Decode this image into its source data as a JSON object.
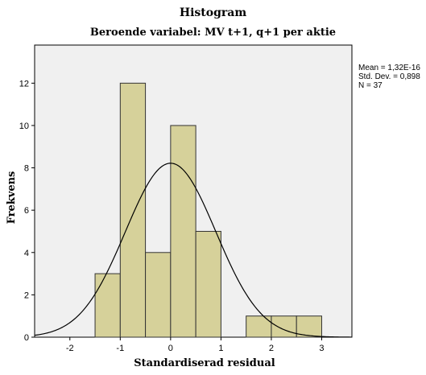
{
  "chart_data": {
    "type": "bar",
    "title": "Histogram",
    "subtitle": "Beroende variabel: MV t+1, q+1 per aktie",
    "xlabel": "Standardiserad residual",
    "ylabel": "Frekvens",
    "xlim": [
      -2.7,
      3.6
    ],
    "ylim": [
      0,
      13.8
    ],
    "x_ticks": [
      -2,
      -1,
      0,
      1,
      2,
      3
    ],
    "y_ticks": [
      0,
      2,
      4,
      6,
      8,
      10,
      12
    ],
    "bin_width": 0.5,
    "bins": [
      {
        "start": -1.5,
        "end": -1.0,
        "count": 3
      },
      {
        "start": -1.0,
        "end": -0.5,
        "count": 12
      },
      {
        "start": -0.5,
        "end": 0.0,
        "count": 4
      },
      {
        "start": 0.0,
        "end": 0.5,
        "count": 10
      },
      {
        "start": 0.5,
        "end": 1.0,
        "count": 5
      },
      {
        "start": 1.5,
        "end": 2.0,
        "count": 1
      },
      {
        "start": 2.0,
        "end": 2.5,
        "count": 1
      },
      {
        "start": 2.5,
        "end": 3.0,
        "count": 1
      }
    ],
    "normal_curve": {
      "mean": 0.0,
      "std": 0.898,
      "n": 37
    },
    "stats_text": [
      "Mean = 1,32E-16",
      "Std. Dev. = 0,898",
      "N = 37"
    ],
    "grid": false,
    "colors": {
      "bar_fill": "#d6d19a",
      "bar_stroke": "#333333",
      "plot_bg": "#f0f0f0",
      "curve": "#000000"
    }
  }
}
